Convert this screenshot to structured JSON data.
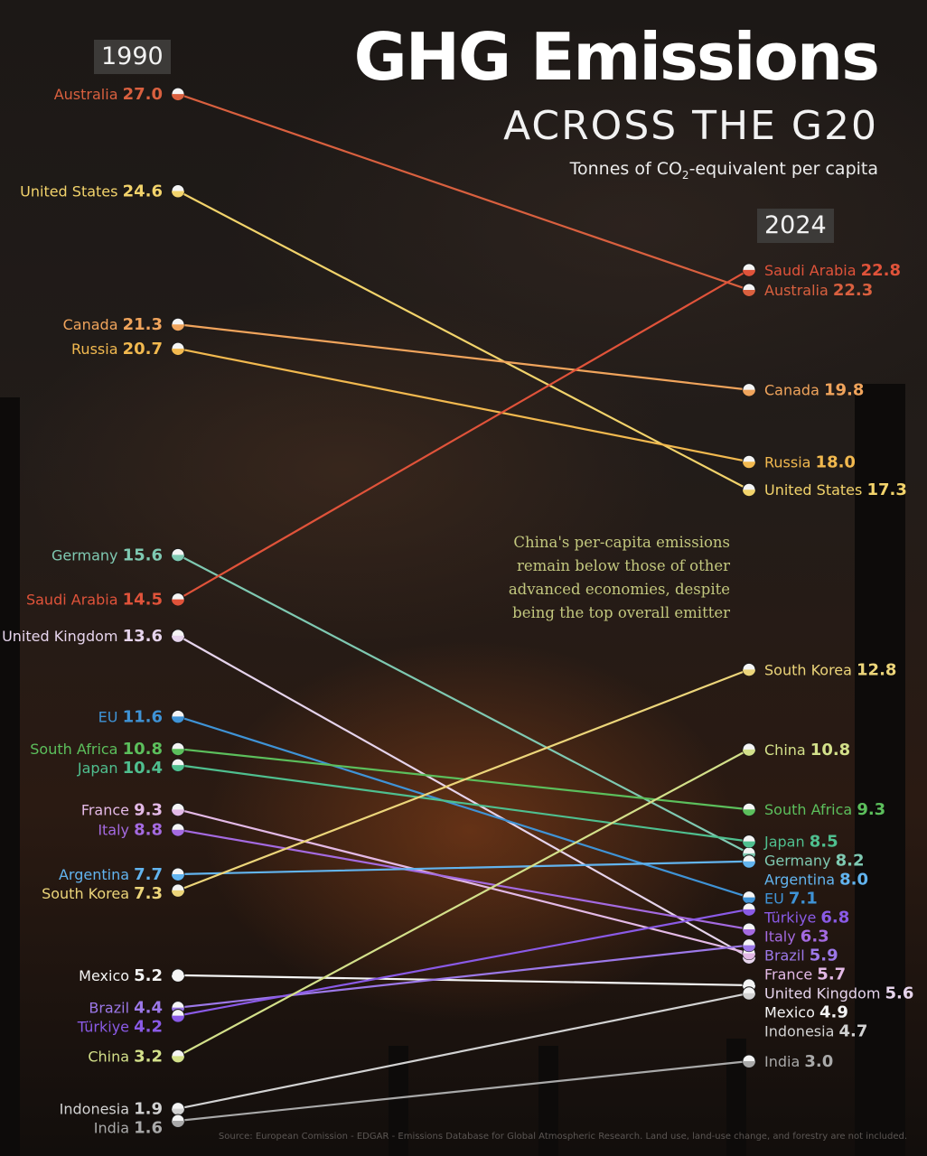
{
  "header": {
    "title": "GHG Emissions",
    "subtitle": "ACROSS THE G20",
    "unit_pre": "Tonnes of CO",
    "unit_sub": "2",
    "unit_post": "-equivalent per capita"
  },
  "annotation": "China's per-capita emissions remain below those of other advanced economies, despite being the top overall emitter",
  "source": "Source: European Comission - EDGAR - Emissions Database for Global Atmospheric Research. Land use, land-use change, and forestry are not included.",
  "chart_data": {
    "type": "line",
    "x": [
      "1990",
      "2024"
    ],
    "series": [
      {
        "name": "Australia",
        "values": [
          27.0,
          22.3
        ],
        "color": "#d9603f"
      },
      {
        "name": "United States",
        "values": [
          24.6,
          17.3
        ],
        "color": "#f2d36b"
      },
      {
        "name": "Canada",
        "values": [
          21.3,
          19.8
        ],
        "color": "#f0a45c"
      },
      {
        "name": "Russia",
        "values": [
          20.7,
          18.0
        ],
        "color": "#f2b94f"
      },
      {
        "name": "Germany",
        "values": [
          15.6,
          8.2
        ],
        "color": "#7fc9b2"
      },
      {
        "name": "Saudi Arabia",
        "values": [
          14.5,
          22.8
        ],
        "color": "#e0533a"
      },
      {
        "name": "United Kingdom",
        "values": [
          13.6,
          5.6
        ],
        "color": "#e6d4ec"
      },
      {
        "name": "EU",
        "values": [
          11.6,
          7.1
        ],
        "color": "#3f93d6"
      },
      {
        "name": "South Africa",
        "values": [
          10.8,
          9.3
        ],
        "color": "#5cbf5c"
      },
      {
        "name": "Japan",
        "values": [
          10.4,
          8.5
        ],
        "color": "#4fbf8f"
      },
      {
        "name": "France",
        "values": [
          9.3,
          5.7
        ],
        "color": "#e3b9e6"
      },
      {
        "name": "Italy",
        "values": [
          8.8,
          6.3
        ],
        "color": "#a46ae0"
      },
      {
        "name": "Argentina",
        "values": [
          7.7,
          8.0
        ],
        "color": "#62b4ef"
      },
      {
        "name": "South Korea",
        "values": [
          7.3,
          12.8
        ],
        "color": "#ecd57a"
      },
      {
        "name": "Mexico",
        "values": [
          5.2,
          4.9
        ],
        "color": "#f4f4f4"
      },
      {
        "name": "Brazil",
        "values": [
          4.4,
          5.9
        ],
        "color": "#9c78e8"
      },
      {
        "name": "Türkiye",
        "values": [
          4.2,
          6.8
        ],
        "color": "#8a5ae6"
      },
      {
        "name": "China",
        "values": [
          3.2,
          10.8
        ],
        "color": "#d3e08a"
      },
      {
        "name": "Indonesia",
        "values": [
          1.9,
          4.7
        ],
        "color": "#d2d2d2"
      },
      {
        "name": "India",
        "values": [
          1.6,
          3.0
        ],
        "color": "#a9a9a9"
      }
    ]
  }
}
